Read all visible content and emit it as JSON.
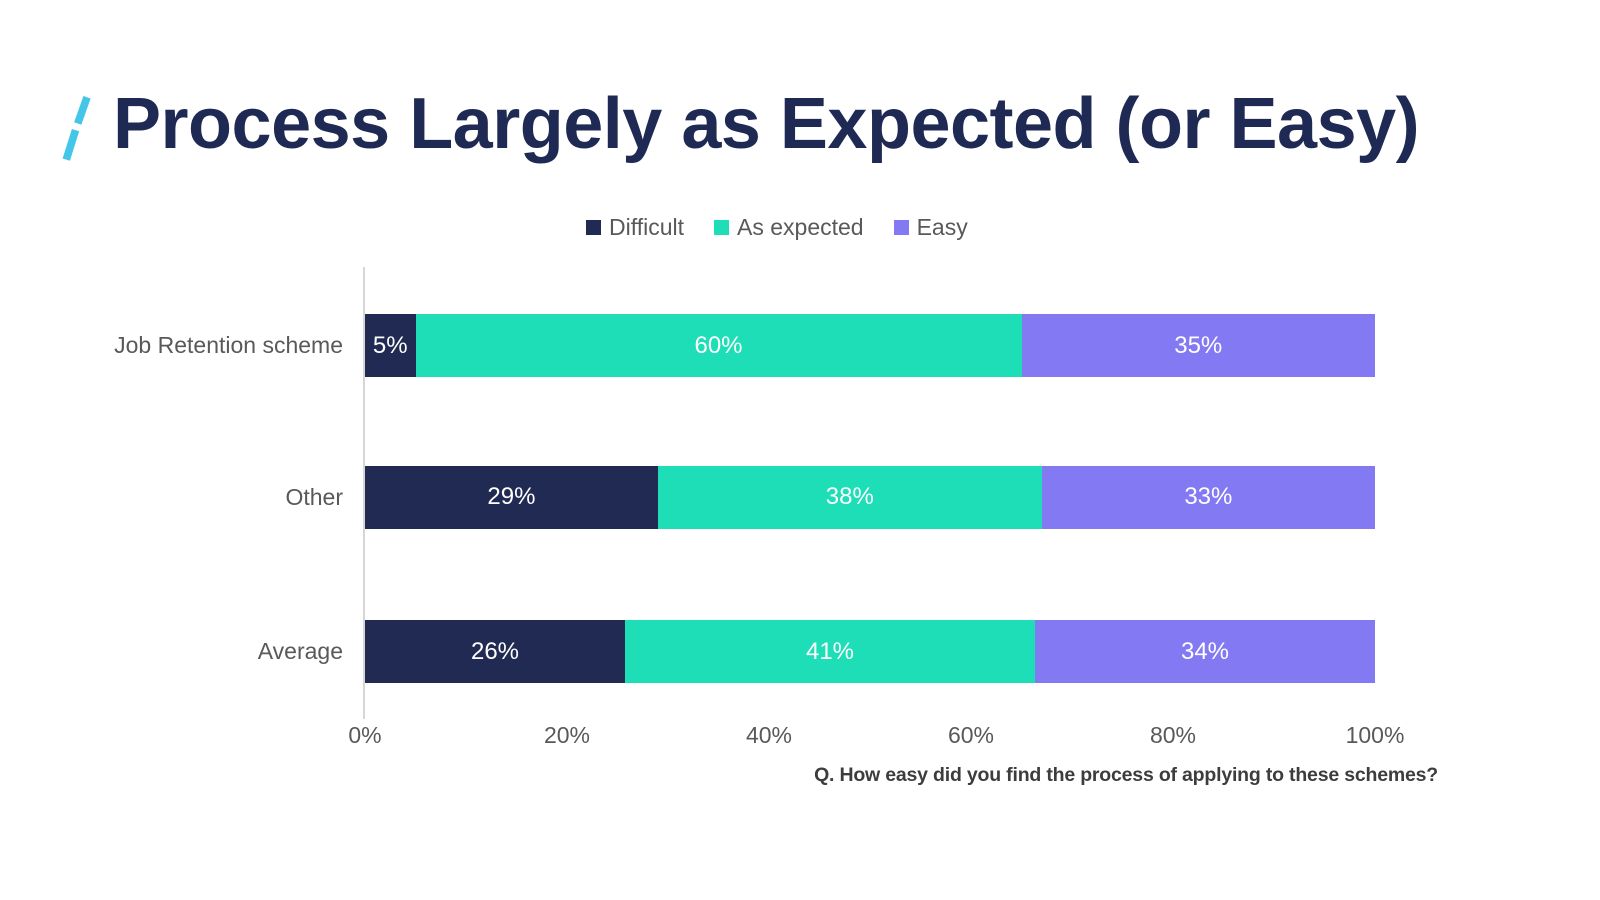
{
  "slide": {
    "title": "Process Largely as Expected (or Easy)",
    "question": "Q. How easy did you find the process of applying to these schemes?"
  },
  "colors": {
    "title_text": "#1f2a54",
    "slash_accent": "#44c6e9",
    "axis_text": "#595959",
    "axis_line": "#d6d6d6",
    "bar_value_text": "#ffffff",
    "footer_text": "#3d3d3d",
    "difficult": "#212a52",
    "as_expected": "#1ddeb6",
    "easy": "#8379f3"
  },
  "chart_data": {
    "type": "bar",
    "orientation": "horizontal",
    "stacked": true,
    "stacked_total": 100,
    "title": "Process Largely as Expected (or Easy)",
    "categories": [
      "Job Retention scheme",
      "Other",
      "Average"
    ],
    "series": [
      {
        "name": "Difficult",
        "color": "#212a52",
        "values": [
          5,
          29,
          26
        ]
      },
      {
        "name": "As expected",
        "color": "#1ddeb6",
        "values": [
          60,
          38,
          41
        ]
      },
      {
        "name": "Easy",
        "color": "#8379f3",
        "values": [
          35,
          33,
          34
        ]
      }
    ],
    "value_suffix": "%",
    "xlim": [
      0,
      100
    ],
    "x_ticks": [
      "0%",
      "20%",
      "40%",
      "60%",
      "80%",
      "100%"
    ],
    "grid": false,
    "legend_position": "top",
    "annotation": "Q. How easy did you find the process of applying to these schemes?"
  }
}
